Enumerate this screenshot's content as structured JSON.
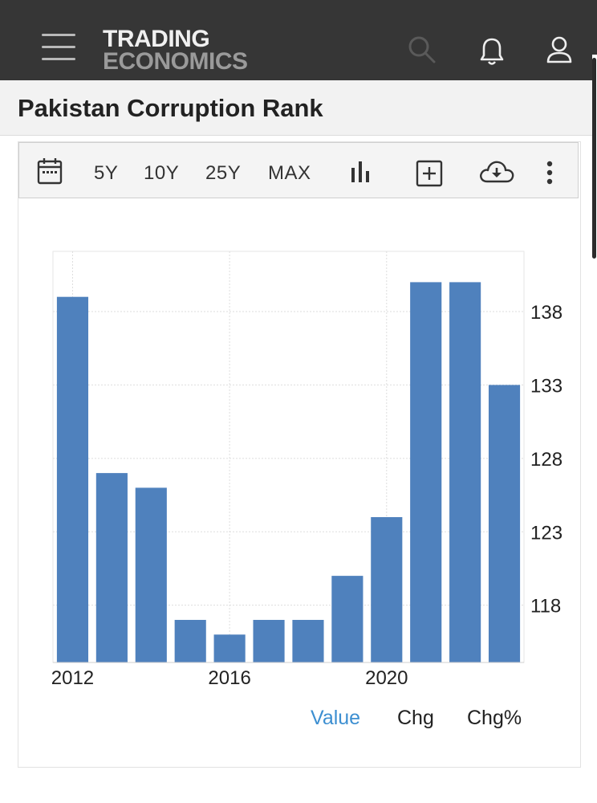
{
  "header": {
    "logo_line1": "TRADING",
    "logo_line2": "ECONOMICS"
  },
  "page_title": "Pakistan Corruption Rank",
  "toolbar": {
    "range_buttons": [
      "5Y",
      "10Y",
      "25Y",
      "MAX"
    ]
  },
  "legend": {
    "items": [
      "Value",
      "Chg",
      "Chg%"
    ],
    "active": "Value"
  },
  "colors": {
    "bar": "#4f81bd",
    "active_legend": "#3d8fd1",
    "header_bg": "#363636"
  },
  "chart_data": {
    "type": "bar",
    "x": [
      2012,
      2013,
      2014,
      2015,
      2016,
      2017,
      2018,
      2019,
      2020,
      2021,
      2022,
      2023
    ],
    "values": [
      139,
      127,
      126,
      117,
      116,
      117,
      117,
      120,
      124,
      140,
      140,
      133
    ],
    "x_tick_labels": [
      "2012",
      "2016",
      "2020"
    ],
    "y_tick_labels": [
      "138",
      "133",
      "128",
      "123",
      "118"
    ],
    "y_ticks": [
      118,
      123,
      128,
      133,
      138
    ],
    "ylim": [
      114.1,
      142.1
    ],
    "yaxis_side": "right",
    "grid": true
  }
}
